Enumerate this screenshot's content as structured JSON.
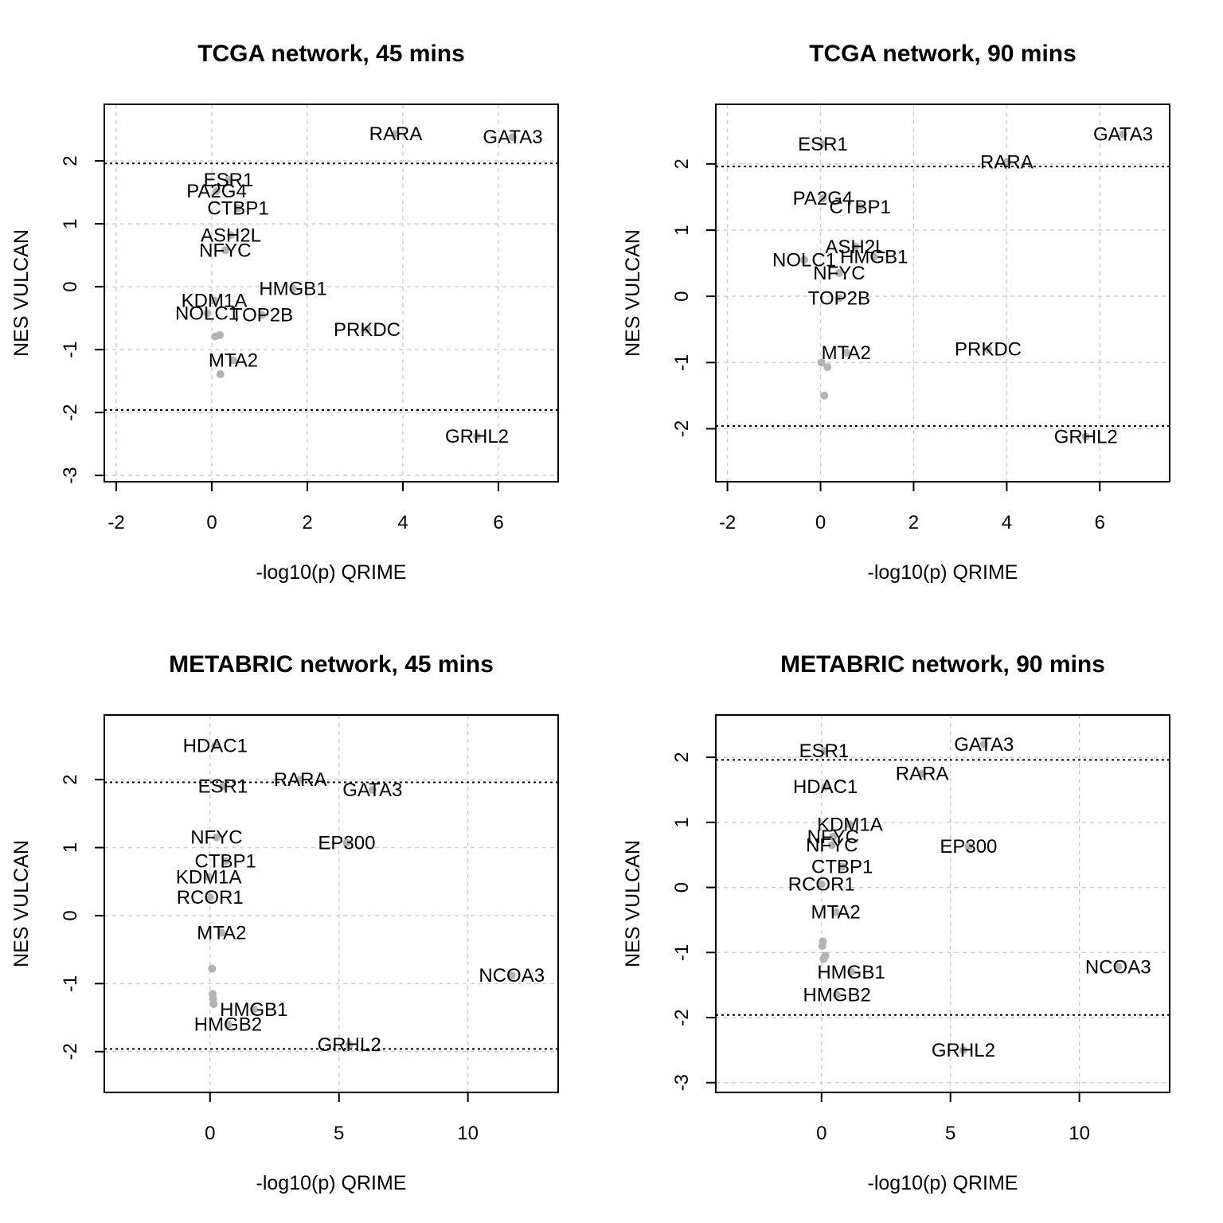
{
  "chart_data": [
    {
      "type": "scatter",
      "title": "TCGA network, 45 mins",
      "xlabel": "-log10(p) QRIME",
      "ylabel": "NES VULCAN",
      "xlim": [
        -2.25,
        7.25
      ],
      "ylim": [
        -3.1,
        2.9
      ],
      "xticks": [
        -2,
        0,
        2,
        4,
        6
      ],
      "yticks": [
        -3,
        -2,
        -1,
        0,
        1,
        2
      ],
      "grid": true,
      "hlines": [
        1.96,
        -1.96
      ],
      "point_color": "#b3b3b3",
      "points": [
        {
          "x": 3.85,
          "y": 2.43,
          "label": "RARA"
        },
        {
          "x": 6.3,
          "y": 2.38,
          "label": "GATA3"
        },
        {
          "x": 0.35,
          "y": 1.7,
          "label": "ESR1"
        },
        {
          "x": 0.1,
          "y": 1.52,
          "label": "PA2G4"
        },
        {
          "x": 0.55,
          "y": 1.25,
          "label": "CTBP1"
        },
        {
          "x": 0.4,
          "y": 0.82,
          "label": "ASH2L"
        },
        {
          "x": 0.28,
          "y": 0.58,
          "label": "NFYC"
        },
        {
          "x": 1.7,
          "y": -0.03,
          "label": "HMGB1"
        },
        {
          "x": 0.05,
          "y": -0.22,
          "label": "KDM1A"
        },
        {
          "x": 1.05,
          "y": -0.45,
          "label": "TOP2B"
        },
        {
          "x": -0.1,
          "y": -0.42,
          "label": "NOLC1"
        },
        {
          "x": 3.25,
          "y": -0.68,
          "label": "PRKDC"
        },
        {
          "x": 0.07,
          "y": -0.79,
          "label": ""
        },
        {
          "x": 0.17,
          "y": -0.77,
          "label": ""
        },
        {
          "x": 0.45,
          "y": -1.17,
          "label": "MTA2"
        },
        {
          "x": 0.18,
          "y": -1.39,
          "label": ""
        },
        {
          "x": 5.55,
          "y": -2.38,
          "label": "GRHL2"
        }
      ]
    },
    {
      "type": "scatter",
      "title": "TCGA network, 90 mins",
      "xlabel": "-log10(p) QRIME",
      "ylabel": "NES VULCAN",
      "xlim": [
        -2.25,
        7.5
      ],
      "ylim": [
        -2.8,
        2.9
      ],
      "xticks": [
        -2,
        0,
        2,
        4,
        6
      ],
      "yticks": [
        -2,
        -1,
        0,
        1,
        2
      ],
      "grid": true,
      "hlines": [
        1.96,
        -1.96
      ],
      "point_color": "#b3b3b3",
      "points": [
        {
          "x": 0.05,
          "y": 2.3,
          "label": "ESR1"
        },
        {
          "x": 6.5,
          "y": 2.45,
          "label": "GATA3"
        },
        {
          "x": 4.0,
          "y": 2.03,
          "label": "RARA"
        },
        {
          "x": 0.05,
          "y": 1.48,
          "label": "PA2G4"
        },
        {
          "x": 0.85,
          "y": 1.35,
          "label": "CTBP1"
        },
        {
          "x": 0.75,
          "y": 0.75,
          "label": "ASH2L"
        },
        {
          "x": 1.15,
          "y": 0.6,
          "label": "HMGB1"
        },
        {
          "x": -0.35,
          "y": 0.55,
          "label": "NOLC1"
        },
        {
          "x": 0.4,
          "y": 0.35,
          "label": "NFYC"
        },
        {
          "x": 0.4,
          "y": -0.03,
          "label": "TOP2B"
        },
        {
          "x": 0.55,
          "y": -0.85,
          "label": "MTA2"
        },
        {
          "x": 0.02,
          "y": -1.0,
          "label": ""
        },
        {
          "x": 0.15,
          "y": -1.07,
          "label": ""
        },
        {
          "x": 0.08,
          "y": -1.5,
          "label": ""
        },
        {
          "x": 3.6,
          "y": -0.8,
          "label": "PRKDC"
        },
        {
          "x": 5.7,
          "y": -2.12,
          "label": "GRHL2"
        }
      ]
    },
    {
      "type": "scatter",
      "title": "METABRIC network, 45 mins",
      "xlabel": "-log10(p) QRIME",
      "ylabel": "NES VULCAN",
      "xlim": [
        -4.1,
        13.5
      ],
      "ylim": [
        -2.6,
        2.95
      ],
      "xticks": [
        0,
        5,
        10
      ],
      "yticks": [
        -2,
        -1,
        0,
        1,
        2
      ],
      "grid": true,
      "hlines": [
        1.96,
        -1.96
      ],
      "point_color": "#b3b3b3",
      "points": [
        {
          "x": 0.2,
          "y": 2.5,
          "label": "HDAC1"
        },
        {
          "x": 0.5,
          "y": 1.9,
          "label": "ESR1"
        },
        {
          "x": 3.5,
          "y": 2.0,
          "label": "RARA"
        },
        {
          "x": 6.3,
          "y": 1.85,
          "label": "GATA3"
        },
        {
          "x": 0.25,
          "y": 1.15,
          "label": "NFYC"
        },
        {
          "x": 5.3,
          "y": 1.07,
          "label": "EP300"
        },
        {
          "x": 0.6,
          "y": 0.8,
          "label": "CTBP1"
        },
        {
          "x": -0.05,
          "y": 0.57,
          "label": "KDM1A"
        },
        {
          "x": 0.0,
          "y": 0.27,
          "label": "RCOR1"
        },
        {
          "x": 0.45,
          "y": -0.25,
          "label": "MTA2"
        },
        {
          "x": 0.08,
          "y": -0.78,
          "label": ""
        },
        {
          "x": 0.1,
          "y": -1.15,
          "label": ""
        },
        {
          "x": 0.12,
          "y": -1.22,
          "label": ""
        },
        {
          "x": 0.14,
          "y": -1.3,
          "label": ""
        },
        {
          "x": 1.7,
          "y": -1.38,
          "label": "HMGB1"
        },
        {
          "x": 0.7,
          "y": -1.6,
          "label": "HMGB2"
        },
        {
          "x": 11.7,
          "y": -0.88,
          "label": "NCOA3"
        },
        {
          "x": 5.4,
          "y": -1.9,
          "label": "GRHL2"
        }
      ]
    },
    {
      "type": "scatter",
      "title": "METABRIC network, 90 mins",
      "xlabel": "-log10(p) QRIME",
      "ylabel": "NES VULCAN",
      "xlim": [
        -4.1,
        13.5
      ],
      "ylim": [
        -3.15,
        2.65
      ],
      "xticks": [
        0,
        5,
        10
      ],
      "yticks": [
        -3,
        -2,
        -1,
        0,
        1,
        2
      ],
      "grid": true,
      "hlines": [
        1.96,
        -1.96
      ],
      "point_color": "#b3b3b3",
      "points": [
        {
          "x": 0.1,
          "y": 2.1,
          "label": "ESR1"
        },
        {
          "x": 6.3,
          "y": 2.2,
          "label": "GATA3"
        },
        {
          "x": 3.9,
          "y": 1.75,
          "label": "RARA"
        },
        {
          "x": 0.15,
          "y": 1.55,
          "label": "HDAC1"
        },
        {
          "x": 1.1,
          "y": 0.97,
          "label": "KDM1A"
        },
        {
          "x": 0.45,
          "y": 0.78,
          "label": "NFYC"
        },
        {
          "x": 0.4,
          "y": 0.65,
          "label": "NFYC"
        },
        {
          "x": 5.7,
          "y": 0.63,
          "label": "EP300"
        },
        {
          "x": 0.8,
          "y": 0.32,
          "label": "CTBP1"
        },
        {
          "x": 0.0,
          "y": 0.05,
          "label": "RCOR1"
        },
        {
          "x": 0.55,
          "y": -0.38,
          "label": "MTA2"
        },
        {
          "x": 0.05,
          "y": -0.83,
          "label": ""
        },
        {
          "x": 0.03,
          "y": -0.9,
          "label": ""
        },
        {
          "x": 0.15,
          "y": -1.05,
          "label": ""
        },
        {
          "x": 0.08,
          "y": -1.1,
          "label": ""
        },
        {
          "x": 1.15,
          "y": -1.3,
          "label": "HMGB1"
        },
        {
          "x": 0.6,
          "y": -1.65,
          "label": "HMGB2"
        },
        {
          "x": 11.5,
          "y": -1.22,
          "label": "NCOA3"
        },
        {
          "x": 5.5,
          "y": -2.5,
          "label": "GRHL2"
        }
      ]
    }
  ]
}
